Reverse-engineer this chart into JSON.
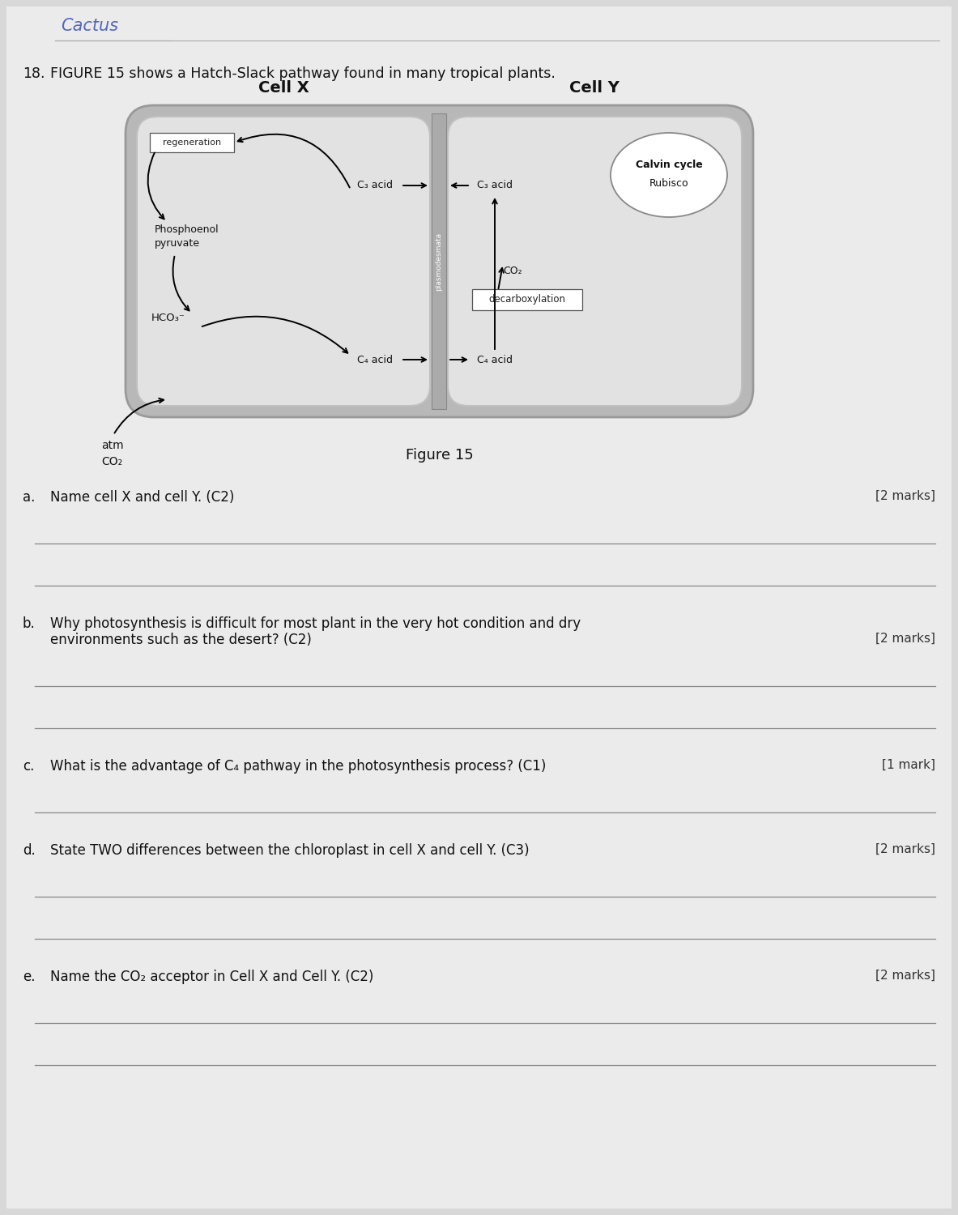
{
  "bg_color": "#d8d8d8",
  "page_bg": "#ebebeb",
  "handwriting_text": "Cactus",
  "question_number": "18.",
  "intro_text": "FIGURE 15 shows a Hatch-Slack pathway found in many tropical plants.",
  "cell_x_label": "Cell X",
  "cell_y_label": "Cell Y",
  "figure_caption": "Figure 15",
  "questions": [
    {
      "letter": "a.",
      "text": "Name cell X and cell Y. (C2)",
      "marks": "[2 marks]",
      "lines": 2,
      "multiline": false
    },
    {
      "letter": "b.",
      "text": "Why photosynthesis is difficult for most plant in the very hot condition and dry\nenvironments such as the desert? (C2)",
      "marks": "[2 marks]",
      "lines": 2,
      "multiline": true
    },
    {
      "letter": "c.",
      "text": "What is the advantage of C₄ pathway in the photosynthesis process? (C1)",
      "marks": "[1 mark]",
      "lines": 1,
      "multiline": false
    },
    {
      "letter": "d.",
      "text": "State TWO differences between the chloroplast in cell X and cell Y. (C3)",
      "marks": "[2 marks]",
      "lines": 2,
      "multiline": false
    },
    {
      "letter": "e.",
      "text": "Name the CO₂ acceptor in Cell X and Cell Y. (C2)",
      "marks": "[2 marks]",
      "lines": 2,
      "multiline": false
    }
  ],
  "diagram": {
    "cell_x_items": {
      "regeneration_box": "regeneration",
      "phosphoenol": "Phosphoenol\npyruvate",
      "hco3": "HCO₃⁻",
      "c3_acid_left": "C₃ acid",
      "c4_acid_left": "C₄ acid"
    },
    "cell_y_items": {
      "calvin_cycle": "Calvin cycle",
      "rubisco": "Rubisco",
      "c3_acid_right": "C₃ acid",
      "co2": "CO₂",
      "decarboxylation": "decarboxylation",
      "c4_acid_right": "C₄ acid"
    },
    "plasmodesmata_label": "plasmodesmata"
  }
}
